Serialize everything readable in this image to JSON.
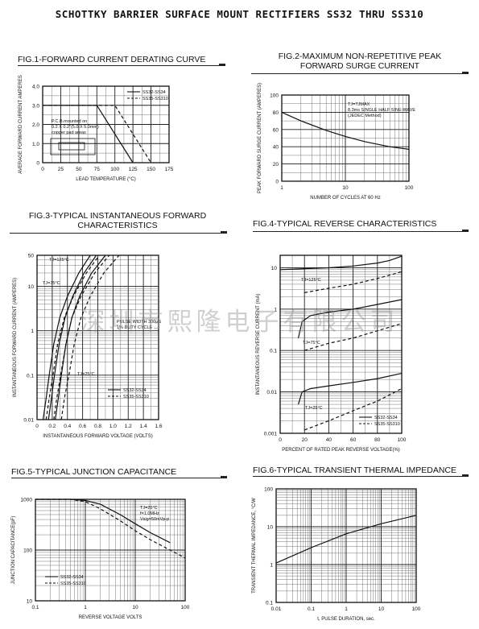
{
  "page_title": "SCHOTTKY BARRIER SURFACE MOUNT RECTIFIERS SS32 THRU SS310",
  "watermark": "深圳市熙隆电子有限公司",
  "chart_data": [
    {
      "id": "fig1",
      "type": "line",
      "title": "FIG.1-FORWARD CURRENT DERATING CURVE",
      "xlabel": "LEAD TEMPERATURE (°C)",
      "ylabel": "AVERAGE FORWARD CURRENT AMPERES",
      "xlim": [
        0,
        175
      ],
      "ylim": [
        0,
        4.0
      ],
      "xticks": [
        0,
        25,
        50,
        75,
        100,
        125,
        150,
        175
      ],
      "xtick_labels": [
        "0",
        "25",
        "50",
        "75",
        "100",
        "125",
        "150",
        "175"
      ],
      "yticks": [
        0,
        1.0,
        2.0,
        3.0,
        4.0
      ],
      "ytick_labels": [
        "0",
        "1.0",
        "2.0",
        "3.0",
        "4.0"
      ],
      "annotation": [
        "P.C.B.mounted on",
        "0.2 X 0.2\"(5.0 X 5.0mm)",
        "copper pad areas"
      ],
      "series": [
        {
          "name": "SS32-SS34",
          "style": "solid",
          "x": [
            0,
            75,
            125
          ],
          "y": [
            3.0,
            3.0,
            0
          ]
        },
        {
          "name": "SS35-SS310",
          "style": "dashed",
          "x": [
            0,
            100,
            150
          ],
          "y": [
            3.0,
            3.0,
            0
          ]
        }
      ]
    },
    {
      "id": "fig2",
      "type": "line",
      "title": [
        "FIG.2-MAXIMUM NON-REPETITIVE PEAK",
        "FORWARD SURGE CURRENT"
      ],
      "xlabel": "NUMBER OF CYCLES AT 60 Hz",
      "ylabel": "PEAK FORWARD SURGE CURRENT (AMPERES)",
      "xscale": "log",
      "xlim": [
        1,
        100
      ],
      "ylim": [
        0,
        100
      ],
      "xticks": [
        1,
        10,
        100
      ],
      "xtick_labels": [
        "1",
        "10",
        "100"
      ],
      "yticks": [
        0,
        20,
        40,
        60,
        80,
        100
      ],
      "ytick_labels": [
        "0",
        "20",
        "40",
        "60",
        "80",
        "100"
      ],
      "annotation": [
        "TJ=TJMAX",
        "8.3ms SINGLE HALF SINE-WAVE",
        "(JEDEC Method)"
      ],
      "series": [
        {
          "style": "solid",
          "x": [
            1,
            2,
            5,
            10,
            20,
            50,
            100
          ],
          "y": [
            80,
            70,
            59,
            52,
            46,
            40,
            37
          ]
        }
      ]
    },
    {
      "id": "fig3",
      "type": "line",
      "title": [
        "FIG.3-TYPICAL INSTANTANEOUS FORWARD",
        "CHARACTERISTICS"
      ],
      "xlabel": "INSTANTANEOUS FORWARD VOLTAGE (VOLTS)",
      "ylabel": "INSTANTANEOUS FORWARD CURRENT (AMPERES)",
      "yscale": "log",
      "xlim": [
        0,
        1.6
      ],
      "ylim": [
        0.01,
        50
      ],
      "xticks": [
        0,
        0.2,
        0.4,
        0.6,
        0.8,
        1.0,
        1.2,
        1.4,
        1.6
      ],
      "xtick_labels": [
        "0",
        "0.2",
        "0.4",
        "0.6",
        "0.8",
        "1.0",
        "1.2",
        "1.4",
        "1.6"
      ],
      "yticks": [
        0.01,
        0.1,
        1,
        10,
        50
      ],
      "ytick_labels": [
        "0.01",
        "0.1",
        "1",
        "10",
        "50"
      ],
      "annotations": [
        "TJ=125°C",
        "TJ=75°C",
        "TJ=25°C",
        "PULSE WIDTH 300μS",
        "1% DUTY CYCLE"
      ],
      "legend": [
        "SS32-SS34",
        "SS35-SS310"
      ],
      "series": [
        {
          "name": "SS32-SS34 TJ=125°C",
          "style": "solid",
          "x": [
            0.08,
            0.12,
            0.16,
            0.22,
            0.3,
            0.4,
            0.55,
            0.7
          ],
          "y": [
            0.01,
            0.03,
            0.1,
            0.5,
            2,
            6,
            20,
            50
          ]
        },
        {
          "name": "SS35-SS310 TJ=125°C",
          "style": "dashed",
          "x": [
            0.12,
            0.16,
            0.21,
            0.27,
            0.36,
            0.48,
            0.65,
            0.82
          ],
          "y": [
            0.01,
            0.03,
            0.1,
            0.5,
            2,
            6,
            20,
            50
          ]
        },
        {
          "name": "SS32-SS34 TJ=75°C",
          "style": "solid",
          "x": [
            0.15,
            0.19,
            0.23,
            0.29,
            0.37,
            0.47,
            0.62,
            0.78
          ],
          "y": [
            0.01,
            0.03,
            0.1,
            0.5,
            2,
            6,
            20,
            50
          ]
        },
        {
          "name": "SS35-SS310 TJ=75°C",
          "style": "dashed",
          "x": [
            0.22,
            0.26,
            0.31,
            0.38,
            0.46,
            0.58,
            0.76,
            0.95
          ],
          "y": [
            0.01,
            0.03,
            0.1,
            0.5,
            2,
            6,
            20,
            50
          ]
        },
        {
          "name": "SS32-SS34 TJ=25°C",
          "style": "solid",
          "x": [
            0.24,
            0.28,
            0.32,
            0.38,
            0.46,
            0.56,
            0.72,
            0.9
          ],
          "y": [
            0.01,
            0.03,
            0.1,
            0.5,
            2,
            6,
            20,
            50
          ]
        },
        {
          "name": "SS35-SS310 TJ=25°C",
          "style": "dashed",
          "x": [
            0.32,
            0.36,
            0.42,
            0.49,
            0.58,
            0.7,
            0.88,
            1.08
          ],
          "y": [
            0.01,
            0.03,
            0.1,
            0.5,
            2,
            6,
            20,
            50
          ]
        }
      ]
    },
    {
      "id": "fig4",
      "type": "line",
      "title": "FIG.4-TYPICAL REVERSE CHARACTERISTICS",
      "xlabel": "PERCENT OF RATED PEAK REVERSE VOLTAGE(%)",
      "ylabel": "INSTANTANEOUS REVERSE CURRENT (mA)",
      "yscale": "log",
      "xlim": [
        0,
        100
      ],
      "ylim": [
        0.001,
        20
      ],
      "xticks": [
        0,
        20,
        40,
        60,
        80,
        100
      ],
      "xtick_labels": [
        "0",
        "20",
        "40",
        "60",
        "80",
        "100"
      ],
      "yticks": [
        0.001,
        0.01,
        0.1,
        1,
        10
      ],
      "ytick_labels": [
        "0.001",
        "0.01",
        "0.1",
        "1",
        "10"
      ],
      "annotations": [
        "TJ=125°C",
        "TJ=75°C",
        "TJ=25°C"
      ],
      "legend": [
        "SS32-SS34",
        "SS35-SS310"
      ],
      "series": [
        {
          "name": "SS32-SS34 TJ=125°C",
          "style": "solid",
          "x": [
            0,
            20,
            40,
            60,
            80,
            90,
            100
          ],
          "y": [
            9,
            9.5,
            10,
            11,
            13,
            15,
            19
          ]
        },
        {
          "name": "SS35-SS310 TJ=125°C",
          "style": "dashed",
          "x": [
            20,
            40,
            60,
            80,
            100
          ],
          "y": [
            2.5,
            3.2,
            4,
            5.5,
            8
          ]
        },
        {
          "name": "SS32-SS34 TJ=75°C",
          "style": "solid",
          "x": [
            15,
            18,
            25,
            40,
            60,
            80,
            100
          ],
          "y": [
            0.2,
            0.5,
            0.7,
            0.85,
            1,
            1.3,
            1.7
          ]
        },
        {
          "name": "SS35-SS310 TJ=75°C",
          "style": "dashed",
          "x": [
            20,
            40,
            60,
            80,
            100
          ],
          "y": [
            0.1,
            0.15,
            0.2,
            0.3,
            0.45
          ]
        },
        {
          "name": "SS32-SS34 TJ=25°C",
          "style": "solid",
          "x": [
            15,
            18,
            25,
            40,
            60,
            80,
            100
          ],
          "y": [
            0.005,
            0.01,
            0.012,
            0.014,
            0.017,
            0.021,
            0.028
          ]
        },
        {
          "name": "SS35-SS310 TJ=25°C",
          "style": "dashed",
          "x": [
            20,
            40,
            60,
            80,
            100
          ],
          "y": [
            0.0012,
            0.002,
            0.0035,
            0.006,
            0.012
          ]
        }
      ]
    },
    {
      "id": "fig5",
      "type": "line",
      "title": "FIG.5-TYPICAL JUNCTION CAPACITANCE",
      "xlabel": "REVERSE VOLTAGE VOLTS",
      "ylabel": "JUNCTION CAPACITANCE(pF)",
      "xscale": "log",
      "yscale": "log",
      "xlim": [
        0.1,
        100
      ],
      "ylim": [
        10,
        1000
      ],
      "xticks": [
        0.1,
        1,
        10,
        100
      ],
      "xtick_labels": [
        "0.1",
        "1",
        "10",
        "100"
      ],
      "yticks": [
        10,
        100,
        1000
      ],
      "ytick_labels": [
        "10",
        "100",
        "1000"
      ],
      "annotation": [
        "TJ=25°C",
        "f=1.0MHz",
        "Vsig=50mVp-p"
      ],
      "legend": [
        "SS32-SS34",
        "SS35-SS310"
      ],
      "series": [
        {
          "name": "SS32-SS34",
          "style": "solid",
          "x": [
            0.1,
            0.5,
            1,
            2,
            5,
            10,
            20,
            50
          ],
          "y": [
            1000,
            1000,
            950,
            800,
            500,
            330,
            220,
            140
          ]
        },
        {
          "name": "SS35-SS310",
          "style": "dashed",
          "x": [
            0.1,
            0.5,
            1,
            2,
            5,
            10,
            20,
            50,
            100
          ],
          "y": [
            1000,
            1000,
            900,
            650,
            380,
            240,
            160,
            100,
            70
          ]
        }
      ]
    },
    {
      "id": "fig6",
      "type": "line",
      "title": "FIG.6-TYPICAL TRANSIENT THERMAL IMPEDANCE",
      "xlabel": "t, PULSE DURATION, sec.",
      "ylabel": "TRANSIENT THERMAL IMPEDANCE, °C/W",
      "xscale": "log",
      "yscale": "log",
      "xlim": [
        0.01,
        100
      ],
      "ylim": [
        0.1,
        100
      ],
      "xticks": [
        0.01,
        0.1,
        1,
        10,
        100
      ],
      "xtick_labels": [
        "0.01",
        "0.1",
        "1",
        "10",
        "100"
      ],
      "yticks": [
        0.1,
        1,
        10,
        100
      ],
      "ytick_labels": [
        "0.1",
        "1",
        "10",
        "100"
      ],
      "series": [
        {
          "style": "solid",
          "x": [
            0.01,
            0.1,
            1,
            10,
            100
          ],
          "y": [
            1.1,
            2.8,
            6.5,
            12,
            20
          ]
        }
      ]
    }
  ]
}
